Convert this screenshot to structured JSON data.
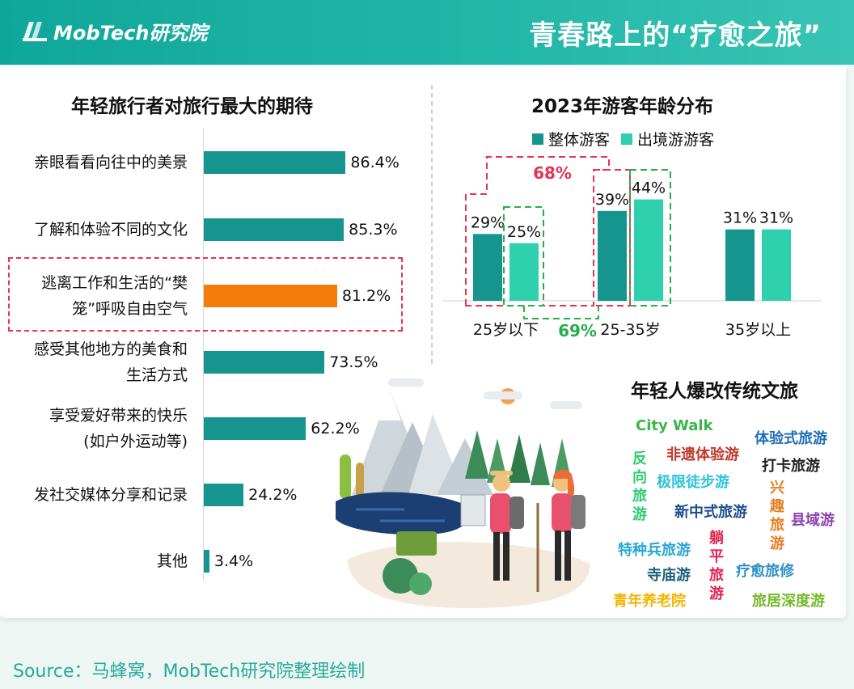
{
  "header": {
    "brand": "MobTech研究院",
    "title": "青春路上的“疗愈之旅”"
  },
  "left_title": "年轻旅行者对旅行最大的期待",
  "right_title": "2023年游客年龄分布",
  "tags_title": "年轻人爆改传统文旅",
  "footer": "Source：马蜂窝，MobTech研究院整理绘制",
  "colors": {
    "teal": "#16958f",
    "mint": "#2fd0ae",
    "orange": "#f57c0a",
    "red": "#e53552",
    "green": "#27ae4a"
  },
  "chart_data": [
    {
      "type": "bar",
      "orientation": "horizontal",
      "title": "年轻旅行者对旅行最大的期待",
      "categories": [
        [
          "亲眼看看向往中的美景"
        ],
        [
          "了解和体验不同的文化"
        ],
        [
          "逃离工作和生活的“樊",
          "笼”呼吸自由空气"
        ],
        [
          "感受其他地方的美食和",
          "生活方式"
        ],
        [
          "享受爱好带来的快乐",
          "(如户外运动等)"
        ],
        [
          "发社交媒体分享和记录"
        ],
        [
          "其他"
        ]
      ],
      "values": [
        86.4,
        85.3,
        81.2,
        73.5,
        62.2,
        24.2,
        3.4
      ],
      "value_labels": [
        "86.4%",
        "85.3%",
        "81.2%",
        "73.5%",
        "62.2%",
        "24.2%",
        "3.4%"
      ],
      "highlight_index": 2,
      "xlim": [
        0,
        100
      ]
    },
    {
      "type": "bar",
      "title": "2023年游客年龄分布",
      "categories": [
        "25岁以下",
        "25-35岁",
        "35岁以上"
      ],
      "series": [
        {
          "name": "整体游客",
          "values": [
            29,
            39,
            31
          ],
          "labels": [
            "29%",
            "39%",
            "31%"
          ],
          "color": "#16958f"
        },
        {
          "name": "出境游游客",
          "values": [
            25,
            44,
            31
          ],
          "labels": [
            "25%",
            "44%",
            "31%"
          ],
          "color": "#2fd0ae"
        }
      ],
      "annotations": [
        {
          "text": "68%",
          "color": "#e53552"
        },
        {
          "text": "69%",
          "color": "#27ae4a"
        }
      ],
      "ylim": [
        0,
        50
      ]
    }
  ],
  "tags": [
    {
      "text": "City Walk",
      "color": "#39b54a"
    },
    {
      "text": "体验式旅游",
      "color": "#1f6fb5"
    },
    {
      "text": "非遗体验游",
      "color": "#c0392b"
    },
    {
      "text": "打卡旅游",
      "color": "#222222"
    },
    {
      "text": "极限徒步游",
      "color": "#2fc3d8"
    },
    {
      "text": "新中式旅游",
      "color": "#1f4e8c"
    },
    {
      "text": "县域游",
      "color": "#8e44ad"
    },
    {
      "text": "特种兵旅游",
      "color": "#2aa6d6"
    },
    {
      "text": "寺庙游",
      "color": "#1a5f7a"
    },
    {
      "text": "疗愈旅修",
      "color": "#2f8fc8"
    },
    {
      "text": "青年养老院",
      "color": "#f2b400"
    },
    {
      "text": "旅居深度游",
      "color": "#76b82a"
    }
  ],
  "vtags": [
    {
      "text": "反向旅游",
      "color": "#2ecc71"
    },
    {
      "text": "兴趣旅游",
      "color": "#e67e22"
    },
    {
      "text": "躺平旅游",
      "color": "#e0234f"
    }
  ]
}
